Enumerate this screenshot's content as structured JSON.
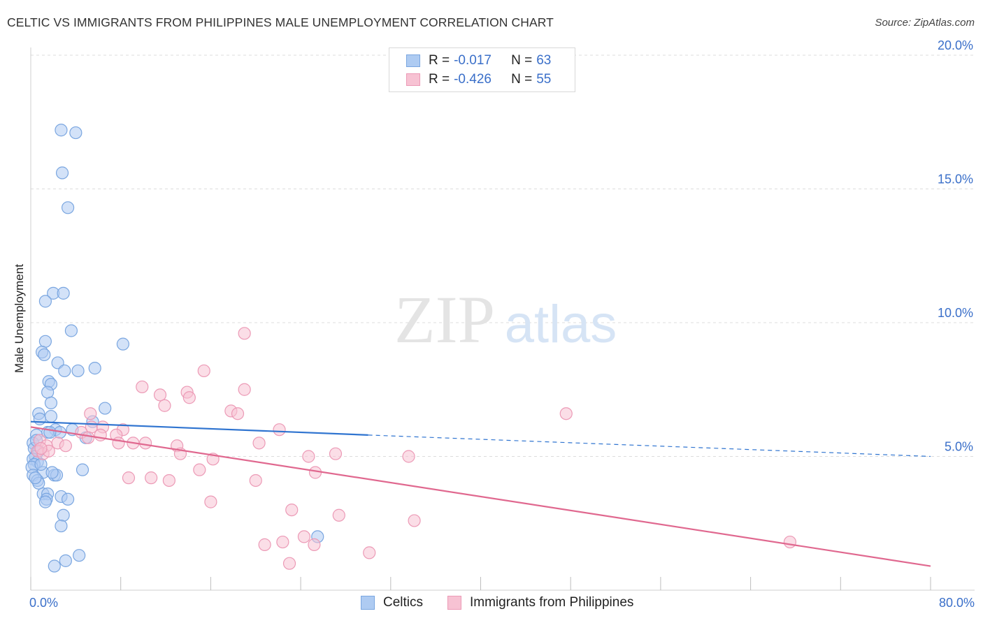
{
  "title": "CELTIC VS IMMIGRANTS FROM PHILIPPINES MALE UNEMPLOYMENT CORRELATION CHART",
  "source": "Source: ZipAtlas.com",
  "watermark": {
    "zip": "ZIP",
    "atlas": "atlas"
  },
  "legend": {
    "rows": [
      {
        "r_label": "R =",
        "r_value": "-0.017",
        "n_label": "N =",
        "n_value": "63"
      },
      {
        "r_label": "R =",
        "r_value": "-0.426",
        "n_label": "N =",
        "n_value": "55"
      }
    ]
  },
  "colors": {
    "celtics_fill": "#aecbf2",
    "celtics_stroke": "#7aa6e0",
    "celtics_line": "#2f74d0",
    "phil_fill": "#f7c2d3",
    "phil_stroke": "#ec9ab6",
    "phil_line": "#e0688f",
    "grid": "#dcdcdc",
    "tick_text": "#3a6fc9"
  },
  "chart_data": {
    "type": "scatter",
    "title": "CELTIC VS IMMIGRANTS FROM PHILIPPINES MALE UNEMPLOYMENT CORRELATION CHART",
    "xlabel": "",
    "ylabel": "Male Unemployment",
    "xlim": [
      0,
      80
    ],
    "ylim": [
      0,
      20
    ],
    "x_ticks": [
      0,
      8,
      16,
      24,
      32,
      40,
      48,
      56,
      64,
      72,
      80
    ],
    "x_tick_labels": [
      {
        "value": 0,
        "label": "0.0%"
      },
      {
        "value": 80,
        "label": "80.0%"
      }
    ],
    "y_tick_labels": [
      {
        "value": 5,
        "label": "5.0%"
      },
      {
        "value": 10,
        "label": "10.0%"
      },
      {
        "value": 15,
        "label": "15.0%"
      },
      {
        "value": 20,
        "label": "20.0%"
      }
    ],
    "grid": true,
    "legend_position": "bottom",
    "series": [
      {
        "name": "Celtics",
        "r": -0.017,
        "n": 63,
        "trend": {
          "x0": 0,
          "y0": 6.3,
          "x1": 30,
          "y1": 5.8,
          "dashed_to_x": 80,
          "dashed_to_y": 5.0
        },
        "points": [
          [
            2.7,
            17.2
          ],
          [
            4.0,
            17.1
          ],
          [
            2.8,
            15.6
          ],
          [
            3.3,
            14.3
          ],
          [
            2.0,
            11.1
          ],
          [
            2.9,
            11.1
          ],
          [
            1.3,
            10.8
          ],
          [
            3.6,
            9.7
          ],
          [
            1.3,
            9.3
          ],
          [
            8.2,
            9.2
          ],
          [
            1.0,
            8.9
          ],
          [
            1.2,
            8.8
          ],
          [
            2.4,
            8.5
          ],
          [
            4.2,
            8.2
          ],
          [
            3.0,
            8.2
          ],
          [
            5.7,
            8.3
          ],
          [
            1.6,
            7.8
          ],
          [
            1.8,
            7.7
          ],
          [
            1.5,
            7.4
          ],
          [
            1.8,
            7.0
          ],
          [
            6.6,
            6.8
          ],
          [
            0.7,
            6.6
          ],
          [
            1.8,
            6.5
          ],
          [
            0.8,
            6.4
          ],
          [
            5.5,
            6.3
          ],
          [
            2.2,
            6.0
          ],
          [
            2.6,
            5.9
          ],
          [
            1.5,
            5.9
          ],
          [
            1.7,
            5.9
          ],
          [
            0.5,
            5.8
          ],
          [
            4.9,
            5.7
          ],
          [
            0.2,
            5.5
          ],
          [
            0.3,
            5.3
          ],
          [
            0.7,
            5.2
          ],
          [
            0.4,
            5.0
          ],
          [
            0.2,
            4.9
          ],
          [
            0.6,
            4.8
          ],
          [
            0.3,
            4.7
          ],
          [
            0.1,
            4.6
          ],
          [
            4.6,
            4.5
          ],
          [
            1.1,
            4.4
          ],
          [
            0.2,
            4.3
          ],
          [
            2.1,
            4.3
          ],
          [
            2.3,
            4.3
          ],
          [
            0.6,
            4.1
          ],
          [
            0.7,
            4.0
          ],
          [
            1.1,
            3.6
          ],
          [
            1.5,
            3.6
          ],
          [
            2.7,
            3.5
          ],
          [
            3.3,
            3.4
          ],
          [
            1.4,
            3.4
          ],
          [
            1.3,
            3.3
          ],
          [
            2.9,
            2.8
          ],
          [
            2.7,
            2.4
          ],
          [
            25.5,
            2.0
          ],
          [
            4.3,
            1.3
          ],
          [
            3.1,
            1.1
          ],
          [
            2.1,
            0.9
          ],
          [
            0.5,
            5.6
          ],
          [
            0.9,
            4.7
          ],
          [
            1.9,
            4.4
          ],
          [
            3.7,
            6.0
          ],
          [
            0.4,
            4.2
          ]
        ]
      },
      {
        "name": "Immigrants from Philippines",
        "r": -0.426,
        "n": 55,
        "trend": {
          "x0": 0,
          "y0": 6.1,
          "x1": 80,
          "y1": 0.9
        },
        "points": [
          [
            19.0,
            9.6
          ],
          [
            15.4,
            8.2
          ],
          [
            9.9,
            7.6
          ],
          [
            19.0,
            7.5
          ],
          [
            13.9,
            7.4
          ],
          [
            11.5,
            7.3
          ],
          [
            14.1,
            7.2
          ],
          [
            11.9,
            6.9
          ],
          [
            17.8,
            6.7
          ],
          [
            18.4,
            6.6
          ],
          [
            47.6,
            6.6
          ],
          [
            5.3,
            6.6
          ],
          [
            5.4,
            6.1
          ],
          [
            6.4,
            6.1
          ],
          [
            8.2,
            6.0
          ],
          [
            22.1,
            6.0
          ],
          [
            4.5,
            5.9
          ],
          [
            6.2,
            5.8
          ],
          [
            7.6,
            5.8
          ],
          [
            5.1,
            5.7
          ],
          [
            2.4,
            5.5
          ],
          [
            20.3,
            5.5
          ],
          [
            9.1,
            5.5
          ],
          [
            10.2,
            5.5
          ],
          [
            7.8,
            5.5
          ],
          [
            0.8,
            5.6
          ],
          [
            1.4,
            5.4
          ],
          [
            13.0,
            5.4
          ],
          [
            3.1,
            5.4
          ],
          [
            0.6,
            5.2
          ],
          [
            1.1,
            5.1
          ],
          [
            1.6,
            5.2
          ],
          [
            27.1,
            5.1
          ],
          [
            13.3,
            5.1
          ],
          [
            24.7,
            5.0
          ],
          [
            33.6,
            5.0
          ],
          [
            16.2,
            4.9
          ],
          [
            15.0,
            4.5
          ],
          [
            25.3,
            4.4
          ],
          [
            8.7,
            4.2
          ],
          [
            10.7,
            4.2
          ],
          [
            12.3,
            4.1
          ],
          [
            20.0,
            4.1
          ],
          [
            16.0,
            3.3
          ],
          [
            23.2,
            3.0
          ],
          [
            27.4,
            2.8
          ],
          [
            34.1,
            2.6
          ],
          [
            24.3,
            2.0
          ],
          [
            20.8,
            1.7
          ],
          [
            22.4,
            1.8
          ],
          [
            25.2,
            1.7
          ],
          [
            67.5,
            1.8
          ],
          [
            30.1,
            1.4
          ],
          [
            23.0,
            1.0
          ],
          [
            0.9,
            5.3
          ]
        ]
      }
    ]
  },
  "bottom_legend": [
    {
      "label": "Celtics"
    },
    {
      "label": "Immigrants from Philippines"
    }
  ]
}
